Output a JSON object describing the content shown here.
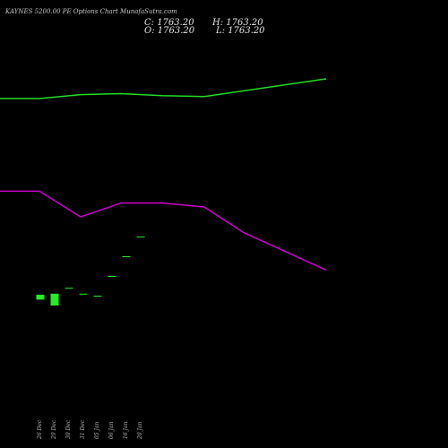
{
  "header": {
    "title": "KAYNES 5200.00  PE Options  Chart MunafaSutra.com",
    "close": "C: 1763.20",
    "high": "H: 1763.20",
    "open": "O: 1763.20",
    "low": "L: 1763.20"
  },
  "colors": {
    "background": "#000000",
    "upper_band": "#22dd22",
    "lower_band": "#cc00cc",
    "candle": "#22ee22",
    "tick": "#ffffff"
  },
  "chart_data": {
    "type": "candlestick",
    "x": [
      "26 Dec",
      "29 Dec",
      "30 Dec",
      "31 Dec",
      "05 Jan",
      "06 Jan",
      "16 Jan",
      "20 Jan"
    ],
    "series": [
      {
        "kind": "candles",
        "open": [
          2420,
          2450,
          2360,
          2390,
          2400,
          2300,
          2200,
          2100
        ],
        "high": [
          2420,
          2450,
          2360,
          2390,
          2400,
          2300,
          2200,
          2100
        ],
        "low": [
          2395,
          2390,
          2360,
          2390,
          2400,
          2300,
          2200,
          2100
        ],
        "close": [
          2395,
          2390,
          2360,
          2390,
          2400,
          2300,
          2200,
          2100
        ]
      },
      {
        "kind": "band_upper",
        "x": [
          "24 Dec",
          "26 Dec",
          "30 Dec",
          "05 Jan",
          "16 Jan",
          "20 Jan",
          "27 Jan"
        ],
        "values": [
          1400,
          1400,
          1380,
          1375,
          1385,
          1390,
          1300
        ]
      },
      {
        "kind": "band_lower",
        "x": [
          "24 Dec",
          "26 Dec",
          "30 Dec",
          "05 Jan",
          "16 Jan",
          "20 Jan",
          "23 Jan",
          "27 Jan"
        ],
        "values": [
          1870,
          1870,
          2000,
          1930,
          1930,
          1950,
          2080,
          2270
        ]
      }
    ]
  }
}
